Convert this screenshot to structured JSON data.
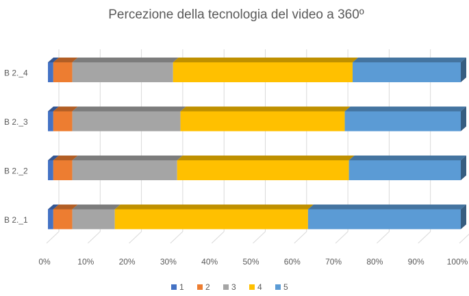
{
  "chart_data": {
    "type": "stacked-bar-horizontal",
    "title": "Percezione della tecnologia del video a 360º",
    "categories": [
      "B 2._1",
      "B 2._2",
      "B 2._3",
      "B 2._4"
    ],
    "series": [
      {
        "name": "1",
        "color": "#4472c4",
        "values": [
          1.3,
          1.3,
          1.3,
          1.3
        ]
      },
      {
        "name": "2",
        "color": "#ed7d31",
        "values": [
          4.6,
          4.6,
          4.6,
          4.6
        ]
      },
      {
        "name": "3",
        "color": "#a5a5a5",
        "values": [
          10.3,
          25.4,
          26.2,
          24.4
        ]
      },
      {
        "name": "4",
        "color": "#ffc000",
        "values": [
          46.8,
          41.6,
          39.8,
          43.5
        ]
      },
      {
        "name": "5",
        "color": "#5b9bd5",
        "values": [
          37.0,
          27.1,
          28.1,
          26.2
        ]
      }
    ],
    "xlim": [
      0,
      100
    ],
    "xticks": [
      {
        "value": 0,
        "label": "0%"
      },
      {
        "value": 10,
        "label": "10%"
      },
      {
        "value": 20,
        "label": "20%"
      },
      {
        "value": 30,
        "label": "30%"
      },
      {
        "value": 40,
        "label": "40%"
      },
      {
        "value": 50,
        "label": "50%"
      },
      {
        "value": 60,
        "label": "60%"
      },
      {
        "value": 70,
        "label": "70%"
      },
      {
        "value": 80,
        "label": "80%"
      },
      {
        "value": 90,
        "label": "90%"
      },
      {
        "value": 100,
        "label": "100%"
      }
    ],
    "grid": true,
    "legend": "bottom"
  }
}
